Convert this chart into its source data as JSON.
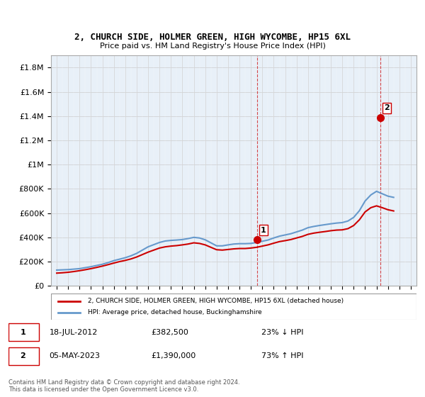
{
  "title": "2, CHURCH SIDE, HOLMER GREEN, HIGH WYCOMBE, HP15 6XL",
  "subtitle": "Price paid vs. HM Land Registry's House Price Index (HPI)",
  "ylabel": "",
  "xlabel": "",
  "xlim": [
    1994.5,
    2026.5
  ],
  "ylim": [
    0,
    1900000
  ],
  "yticks": [
    0,
    200000,
    400000,
    600000,
    800000,
    1000000,
    1200000,
    1400000,
    1600000,
    1800000
  ],
  "ytick_labels": [
    "£0",
    "£200K",
    "£400K",
    "£600K",
    "£800K",
    "£1M",
    "£1.2M",
    "£1.4M",
    "£1.6M",
    "£1.8M"
  ],
  "xticks": [
    1995,
    1996,
    1997,
    1998,
    1999,
    2000,
    2001,
    2002,
    2003,
    2004,
    2005,
    2006,
    2007,
    2008,
    2009,
    2010,
    2011,
    2012,
    2013,
    2014,
    2015,
    2016,
    2017,
    2018,
    2019,
    2020,
    2021,
    2022,
    2023,
    2024,
    2025,
    2026
  ],
  "hpi_x": [
    1995,
    1995.5,
    1996,
    1996.5,
    1997,
    1997.5,
    1998,
    1998.5,
    1999,
    1999.5,
    2000,
    2000.5,
    2001,
    2001.5,
    2002,
    2002.5,
    2003,
    2003.5,
    2004,
    2004.5,
    2005,
    2005.5,
    2006,
    2006.5,
    2007,
    2007.5,
    2008,
    2008.5,
    2009,
    2009.5,
    2010,
    2010.5,
    2011,
    2011.5,
    2012,
    2012.5,
    2013,
    2013.5,
    2014,
    2014.5,
    2015,
    2015.5,
    2016,
    2016.5,
    2017,
    2017.5,
    2018,
    2018.5,
    2019,
    2019.5,
    2020,
    2020.5,
    2021,
    2021.5,
    2022,
    2022.5,
    2023,
    2023.5,
    2024,
    2024.5
  ],
  "hpi_y": [
    130000,
    132000,
    134000,
    138000,
    142000,
    150000,
    158000,
    168000,
    178000,
    192000,
    208000,
    220000,
    232000,
    248000,
    268000,
    295000,
    322000,
    340000,
    358000,
    370000,
    375000,
    378000,
    382000,
    390000,
    400000,
    395000,
    380000,
    355000,
    330000,
    330000,
    338000,
    345000,
    348000,
    348000,
    350000,
    358000,
    368000,
    378000,
    395000,
    410000,
    420000,
    430000,
    445000,
    460000,
    480000,
    490000,
    498000,
    505000,
    512000,
    518000,
    522000,
    535000,
    565000,
    620000,
    700000,
    750000,
    780000,
    760000,
    740000,
    730000
  ],
  "price_x": [
    1995,
    1995.5,
    1996,
    1996.5,
    1997,
    1997.5,
    1998,
    1998.5,
    1999,
    1999.5,
    2000,
    2000.5,
    2001,
    2001.5,
    2002,
    2002.5,
    2003,
    2003.5,
    2004,
    2004.5,
    2005,
    2005.5,
    2006,
    2006.5,
    2007,
    2007.5,
    2008,
    2008.5,
    2009,
    2009.5,
    2010,
    2010.5,
    2011,
    2011.5,
    2012,
    2012.5,
    2013,
    2013.5,
    2014,
    2014.5,
    2015,
    2015.5,
    2016,
    2016.5,
    2017,
    2017.5,
    2018,
    2018.5,
    2019,
    2019.5,
    2020,
    2020.5,
    2021,
    2021.5,
    2022,
    2022.5,
    2023,
    2023.5,
    2024,
    2024.5
  ],
  "price_y": [
    105000,
    108000,
    112000,
    118000,
    125000,
    133000,
    142000,
    152000,
    163000,
    175000,
    188000,
    200000,
    210000,
    222000,
    238000,
    258000,
    278000,
    295000,
    312000,
    322000,
    328000,
    332000,
    338000,
    345000,
    355000,
    350000,
    338000,
    318000,
    298000,
    295000,
    300000,
    305000,
    308000,
    308000,
    312000,
    318000,
    328000,
    338000,
    352000,
    365000,
    373000,
    382000,
    395000,
    408000,
    425000,
    435000,
    442000,
    448000,
    455000,
    460000,
    462000,
    472000,
    498000,
    545000,
    610000,
    645000,
    660000,
    645000,
    628000,
    618000
  ],
  "sale1_x": 2012.54,
  "sale1_y": 382500,
  "sale1_label": "1",
  "sale2_x": 2023.34,
  "sale2_y": 1390000,
  "sale2_label": "2",
  "sale_color": "#cc0000",
  "hpi_color": "#6699cc",
  "price_color": "#cc0000",
  "bg_hatch_color": "#ddeeff",
  "grid_color": "#cccccc",
  "legend1": "2, CHURCH SIDE, HOLMER GREEN, HIGH WYCOMBE, HP15 6XL (detached house)",
  "legend2": "HPI: Average price, detached house, Buckinghamshire",
  "note1_label": "1",
  "note1_date": "18-JUL-2012",
  "note1_price": "£382,500",
  "note1_info": "23% ↓ HPI",
  "note2_label": "2",
  "note2_date": "05-MAY-2023",
  "note2_price": "£1,390,000",
  "note2_info": "73% ↑ HPI",
  "footer": "Contains HM Land Registry data © Crown copyright and database right 2024.\nThis data is licensed under the Open Government Licence v3.0."
}
